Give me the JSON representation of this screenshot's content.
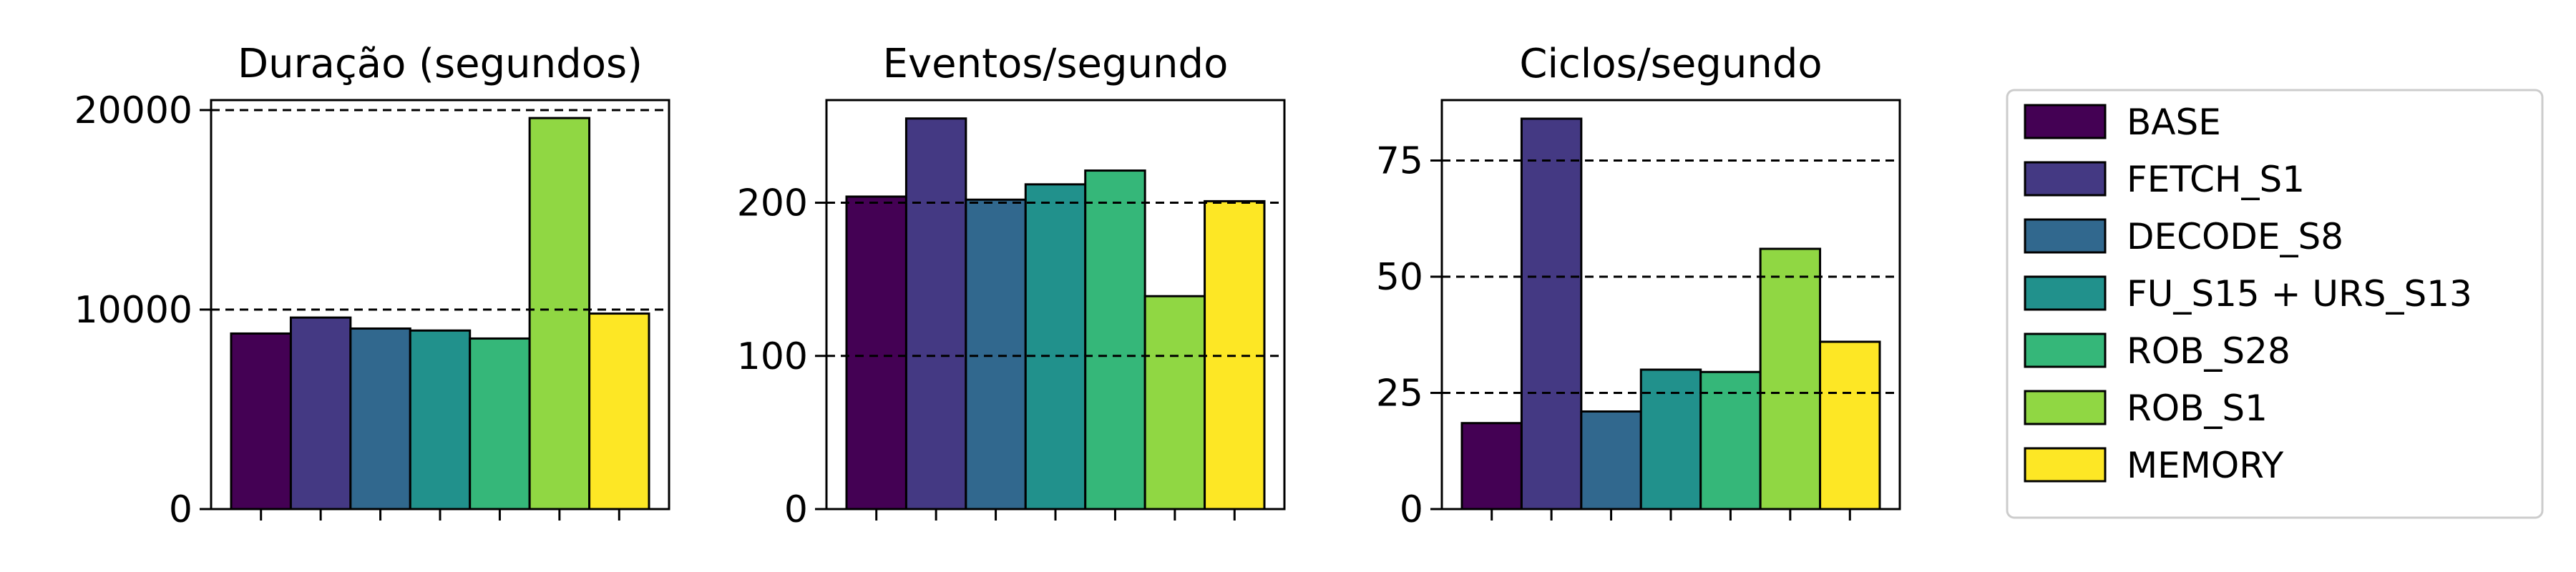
{
  "chart_data": [
    {
      "type": "bar",
      "title": "Duração (segundos)",
      "categories": [
        "BASE",
        "FETCH_S1",
        "DECODE_S8",
        "FU_S15 + URS_S13",
        "ROB_S28",
        "ROB_S1",
        "MEMORY"
      ],
      "values": [
        8800,
        9600,
        9050,
        8950,
        8550,
        19600,
        9800
      ],
      "ylim": [
        0,
        20500
      ],
      "yticks": [
        0,
        10000,
        20000
      ],
      "grid_lines": [
        10000,
        20000
      ]
    },
    {
      "type": "bar",
      "title": "Eventos/segundo",
      "categories": [
        "BASE",
        "FETCH_S1",
        "DECODE_S8",
        "FU_S15 + URS_S13",
        "ROB_S28",
        "ROB_S1",
        "MEMORY"
      ],
      "values": [
        204,
        255,
        202,
        212,
        221,
        139,
        201
      ],
      "ylim": [
        0,
        267
      ],
      "yticks": [
        0,
        100,
        200
      ],
      "grid_lines": [
        100,
        200
      ]
    },
    {
      "type": "bar",
      "title": "Ciclos/segundo",
      "categories": [
        "BASE",
        "FETCH_S1",
        "DECODE_S8",
        "FU_S15 + URS_S13",
        "ROB_S28",
        "ROB_S1",
        "MEMORY"
      ],
      "values": [
        18.5,
        84,
        21,
        30,
        29.5,
        56,
        36
      ],
      "ylim": [
        0,
        88
      ],
      "yticks": [
        0,
        25,
        50,
        75
      ],
      "grid_lines": [
        25,
        50,
        75
      ]
    }
  ],
  "legend": {
    "placement": "right",
    "entries": [
      "BASE",
      "FETCH_S1",
      "DECODE_S8",
      "FU_S15 + URS_S13",
      "ROB_S28",
      "ROB_S1",
      "MEMORY"
    ]
  },
  "colors": [
    "#440154",
    "#443983",
    "#31688e",
    "#21918c",
    "#35b779",
    "#90d743",
    "#fde725"
  ]
}
